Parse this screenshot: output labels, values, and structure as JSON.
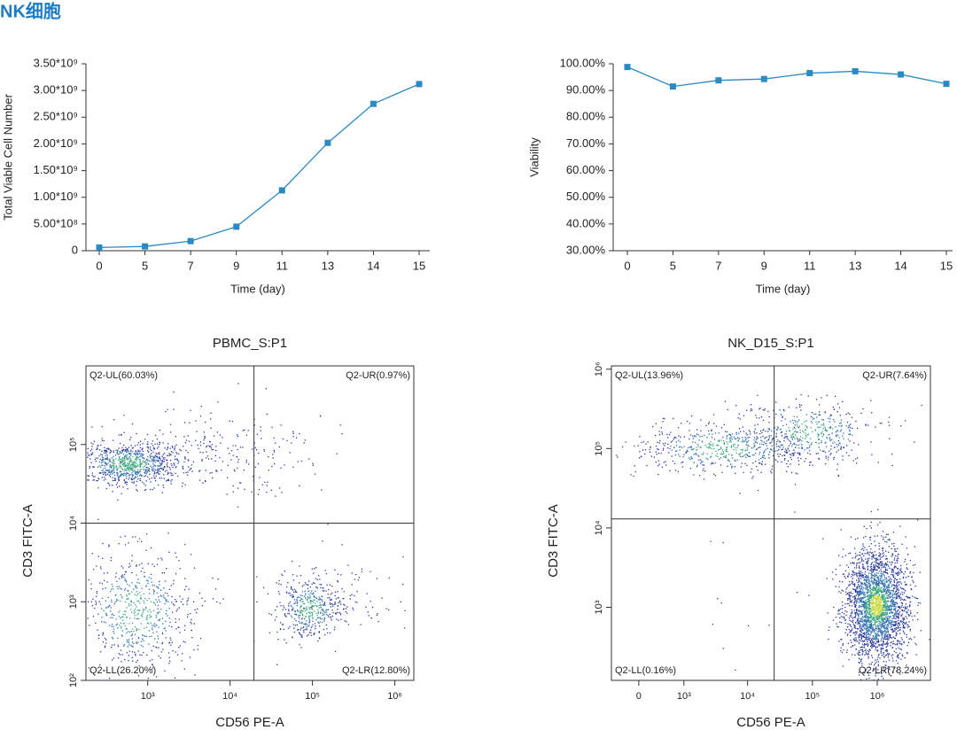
{
  "title": "NK细胞",
  "chart_data": [
    {
      "type": "line",
      "x_label": "Time (day)",
      "y_label": "Total Viable Cell Number",
      "categories": [
        "0",
        "5",
        "7",
        "9",
        "11",
        "13",
        "14",
        "15"
      ],
      "series": [
        {
          "color": "#2b8ac4",
          "values": [
            60000000,
            80000000,
            180000000,
            450000000,
            1130000000,
            2020000000,
            2750000000,
            3120000000
          ]
        }
      ],
      "ylim": [
        0,
        3500000000
      ],
      "yticks": [
        0,
        {
          "value": 500000000,
          "label": "5.00*10⁸"
        },
        {
          "value": 1000000000,
          "label": "1.00*10⁹"
        },
        {
          "value": 1500000000,
          "label": "1.50*10⁹"
        },
        {
          "value": 2000000000,
          "label": "2.00*10⁹"
        },
        {
          "value": 2500000000,
          "label": "2.50*10⁹"
        },
        {
          "value": 3000000000,
          "label": "3.00*10⁹"
        },
        {
          "value": 3500000000,
          "label": "3.50*10⁹"
        }
      ]
    },
    {
      "type": "line",
      "x_label": "Time (day)",
      "y_label": "Viability",
      "categories": [
        "0",
        "5",
        "7",
        "9",
        "11",
        "13",
        "14",
        "15"
      ],
      "series": [
        {
          "color": "#2b8ac4",
          "values": [
            98.8,
            91.5,
            93.8,
            94.3,
            96.5,
            97.2,
            96.0,
            92.5
          ]
        }
      ],
      "ylim": [
        30,
        100
      ],
      "yticks": [
        {
          "value": 30,
          "label": "30.00%"
        },
        {
          "value": 40,
          "label": "40.00%"
        },
        {
          "value": 50,
          "label": "50.00%"
        },
        {
          "value": 60,
          "label": "60.00%"
        },
        {
          "value": 70,
          "label": "70.00%"
        },
        {
          "value": 80,
          "label": "80.00%"
        },
        {
          "value": 90,
          "label": "90.00%"
        },
        {
          "value": 100,
          "label": "100.00%"
        }
      ]
    },
    {
      "type": "flow",
      "title": "PBMC_S:P1",
      "x_label": "CD56 PE-A",
      "y_label": "CD3 FITC-A",
      "xscale": "log",
      "yscale": "log",
      "xlim": [
        178,
        1700000
      ],
      "ylim": [
        100,
        1000000
      ],
      "xticks": [
        {
          "value": 1000,
          "label": "10³"
        },
        {
          "value": 10000,
          "label": "10⁴"
        },
        {
          "value": 100000,
          "label": "10⁵"
        },
        {
          "value": 1000000,
          "label": "10⁶"
        }
      ],
      "yticks": [
        {
          "value": 100,
          "label": "10²"
        },
        {
          "value": 1000,
          "label": "10³"
        },
        {
          "value": 10000,
          "label": "10⁴"
        },
        {
          "value": 100000,
          "label": "10⁵"
        }
      ],
      "gate": {
        "x": 19500,
        "y": 10000
      },
      "quadrants": {
        "UL": "Q2-UL(60.03%)",
        "UR": "Q2-UR(0.97%)",
        "LL": "Q2-LL(26.20%)",
        "LR": "Q2-LR(12.80%)"
      }
    },
    {
      "type": "flow",
      "title": "NK_D15_S:P1",
      "x_label": "CD56 PE-A",
      "y_label": "CD3 FITC-A",
      "xscale": "asinh",
      "linear_width": 420,
      "yscale": "log",
      "xlim": [
        -475,
        6600000
      ],
      "ylim": [
        120,
        1100000
      ],
      "xticks": [
        0,
        {
          "value": 1000,
          "label": "10³"
        },
        {
          "value": 10000,
          "label": "10⁴"
        },
        {
          "value": 100000,
          "label": "10⁵"
        },
        {
          "value": 1000000,
          "label": "10⁶"
        }
      ],
      "yticks": [
        {
          "value": 1000,
          "label": "10³"
        },
        {
          "value": 10000,
          "label": "10⁴"
        },
        {
          "value": 100000,
          "label": "10⁵"
        },
        {
          "value": 1000000,
          "label": "10⁶"
        }
      ],
      "gate": {
        "x": 25700,
        "y": 13000
      },
      "quadrants": {
        "UL": "Q2-UL(13.96%)",
        "UR": "Q2-UR(7.64%)",
        "LL": "Q2-LL(0.16%)",
        "LR": "Q2-LR(78.24%)"
      }
    }
  ]
}
